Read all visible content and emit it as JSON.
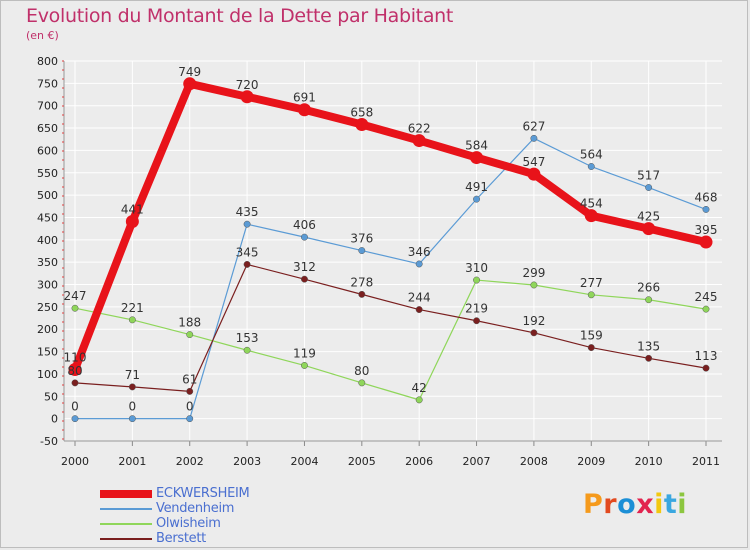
{
  "title": "Evolution du Montant de la Dette par Habitant",
  "subtitle": "(en €)",
  "brand": {
    "text": "Proxiti",
    "letters": [
      "P",
      "r",
      "o",
      "x",
      "i",
      "t",
      "i"
    ],
    "colors": [
      "#f59a1c",
      "#e24a1f",
      "#1c8fd6",
      "#e2244f",
      "#f2c80f",
      "#3aa7e0",
      "#8cc63f"
    ]
  },
  "chart_data": {
    "type": "line",
    "x": [
      "2000",
      "2001",
      "2002",
      "2003",
      "2004",
      "2005",
      "2006",
      "2007",
      "2008",
      "2009",
      "2010",
      "2011"
    ],
    "ylim": [
      -50,
      800
    ],
    "yticks": [
      "-50",
      "0",
      "50",
      "100",
      "150",
      "200",
      "250",
      "300",
      "350",
      "400",
      "450",
      "500",
      "550",
      "600",
      "650",
      "700",
      "750",
      "800"
    ],
    "grid": true,
    "legend_position": "bottom-left",
    "series": [
      {
        "name": "ECKWERSHEIM",
        "color": "#e8131a",
        "values": [
          110,
          441,
          749,
          720,
          691,
          658,
          622,
          584,
          547,
          454,
          425,
          395
        ],
        "labels": [
          "110",
          "441",
          "749",
          "720",
          "691",
          "658",
          "622",
          "584",
          "547",
          "454",
          "425",
          "395"
        ]
      },
      {
        "name": "Vendenheim",
        "color": "#5b9bd5",
        "values": [
          0,
          0,
          0,
          435,
          406,
          376,
          346,
          491,
          627,
          564,
          517,
          468
        ],
        "labels": [
          "0",
          "0",
          "0",
          "435",
          "406",
          "376",
          "346",
          "491",
          "627",
          "564",
          "517",
          "468"
        ]
      },
      {
        "name": "Olwisheim",
        "color": "#8fd65a",
        "values": [
          247,
          221,
          188,
          153,
          119,
          80,
          42,
          310,
          299,
          277,
          266,
          245
        ],
        "labels": [
          "247",
          "221",
          "188",
          "153",
          "119",
          "80",
          "42",
          "310",
          "299",
          "277",
          "266",
          "245"
        ]
      },
      {
        "name": "Berstett",
        "color": "#7a1f1f",
        "values": [
          80,
          71,
          61,
          345,
          312,
          278,
          244,
          219,
          192,
          159,
          135,
          113
        ],
        "labels": [
          "80",
          "71",
          "61",
          "345",
          "312",
          "278",
          "244",
          "219",
          "192",
          "159",
          "135",
          "113"
        ]
      }
    ]
  }
}
